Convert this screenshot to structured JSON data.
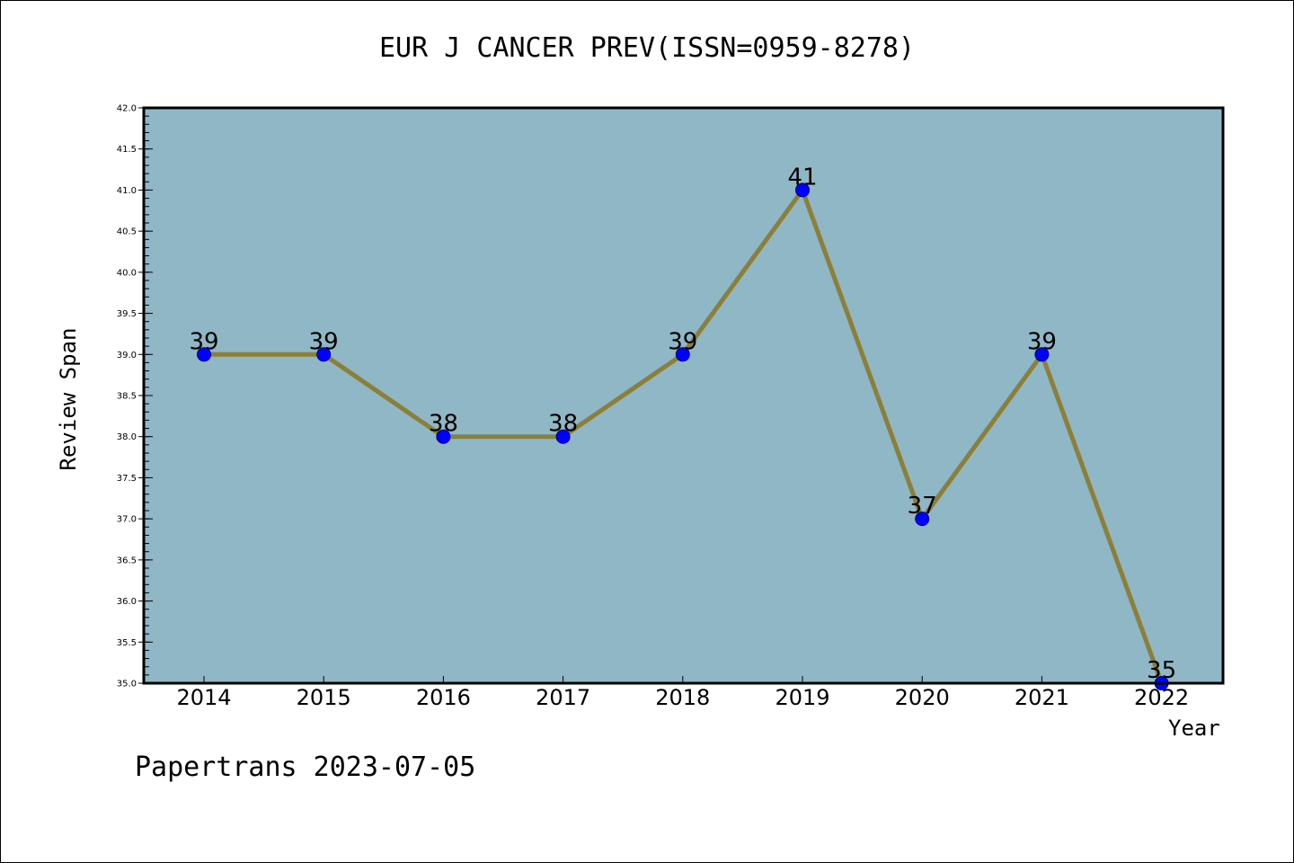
{
  "title": "EUR J CANCER PREV(ISSN=0959-8278)",
  "footer": "Papertrans 2023-07-05",
  "colors": {
    "plot_background": "#8fb7c5",
    "line": "#8b7f3a",
    "marker": "#0000ff",
    "marker_edge": "#000080"
  },
  "chart_data": {
    "type": "line",
    "title": "EUR J CANCER PREV(ISSN=0959-8278)",
    "xlabel": "Year",
    "ylabel": "Review Span",
    "categories": [
      "2014",
      "2015",
      "2016",
      "2017",
      "2018",
      "2019",
      "2020",
      "2021",
      "2022"
    ],
    "series": [
      {
        "values": [
          39,
          39,
          38,
          38,
          39,
          41,
          37,
          39,
          35
        ]
      }
    ],
    "data_labels": [
      "39",
      "39",
      "38",
      "38",
      "39",
      "41",
      "37",
      "39",
      "35"
    ],
    "ylim": [
      35.0,
      42.0
    ],
    "yticks": [
      "35.0",
      "35.5",
      "36.0",
      "36.5",
      "37.0",
      "37.5",
      "38.0",
      "38.5",
      "39.0",
      "39.5",
      "40.0",
      "40.5",
      "41.0",
      "41.5",
      "42.0"
    ],
    "grid": false,
    "legend": "none"
  }
}
